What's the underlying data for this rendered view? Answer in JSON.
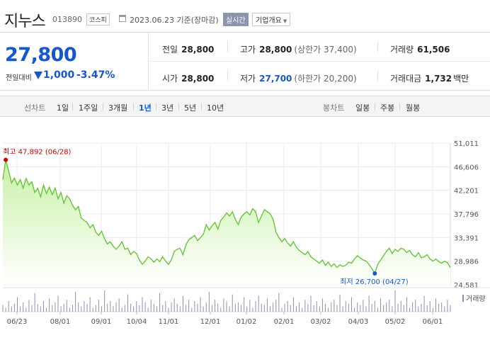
{
  "header": {
    "stock_name": "지누스",
    "stock_code": "013890",
    "market": "코스피",
    "date_text": "2023.06.23 기준(장마감)",
    "realtime_label": "실시간",
    "overview_label": "기업개요",
    "calendar_icon": "calendar-icon",
    "caret_icon": "chevron-down-icon"
  },
  "price": {
    "current": "27,800",
    "change_label": "전일대비",
    "direction_icon": "down-triangle-icon",
    "change": "1,000",
    "change_pct": "-3.47%",
    "down_color": "#1656d1"
  },
  "stats": {
    "prev_close_label": "전일",
    "prev_close": "28,800",
    "high_label": "고가",
    "high": "28,800",
    "upper_limit": "(상한가 37,400)",
    "volume_label": "거래량",
    "volume": "61,506",
    "open_label": "시가",
    "open": "28,800",
    "low_label": "저가",
    "low": "27,700",
    "lower_limit": "(하한가 20,200)",
    "trade_value_label": "거래대금",
    "trade_value": "1,732",
    "trade_value_unit": "백만"
  },
  "toolbar": {
    "line_chart_label": "선차트",
    "periods": [
      "1일",
      "1주일",
      "3개월",
      "1년",
      "3년",
      "5년",
      "10년"
    ],
    "active_period": "1년",
    "candle_label": "봉차트",
    "candles": [
      "일봉",
      "주봉",
      "월봉"
    ]
  },
  "chart_data": {
    "type": "area",
    "color_line": "#5cc52a",
    "color_fill_top": "#c9f0a7",
    "color_high": "#d20000",
    "color_low": "#1656d1",
    "y_ticks": [
      "51,011",
      "46,606",
      "42,201",
      "37,796",
      "33,391",
      "28,986",
      "24,581"
    ],
    "ylim": [
      24581,
      51011
    ],
    "x_tick_labels": [
      "06/23",
      "08/01",
      "09/01",
      "10/04",
      "11/01",
      "12/01",
      "01/02",
      "02/01",
      "03/02",
      "04/03",
      "05/02",
      "06/01"
    ],
    "high_annotation": "최고 47,892 (06/28)",
    "low_annotation": "최저 26,700 (04/27)",
    "volume_label": "거래량",
    "high_point": {
      "date": "06/28",
      "value": 47892
    },
    "low_point": {
      "date": "04/27",
      "value": 26700
    },
    "series": [
      {
        "values": [
          44200,
          47892,
          45800,
          43600,
          44500,
          43200,
          44200,
          42600,
          44400,
          43200,
          43800,
          41800,
          42600,
          41000,
          43200,
          41600,
          42800,
          41400,
          42600,
          40600,
          41800,
          39800,
          41200,
          40600,
          39400,
          38600,
          39200,
          37000,
          36600,
          36200,
          35200,
          35800,
          34400,
          33800,
          34600,
          33200,
          32200,
          32600,
          31800,
          31200,
          31800,
          32600,
          31200,
          31400,
          30200,
          30800,
          30400,
          29200,
          28400,
          29000,
          29800,
          29400,
          28800,
          29400,
          28900,
          29800,
          29000,
          28400,
          29200,
          30800,
          31200,
          31400,
          30200,
          32000,
          33000,
          33400,
          33800,
          32800,
          33400,
          34000,
          35800,
          34800,
          35600,
          36200,
          35000,
          36600,
          37200,
          38000,
          37400,
          38200,
          36800,
          35800,
          37200,
          37800,
          38200,
          37600,
          38800,
          38200,
          36200,
          37400,
          38600,
          38200,
          37800,
          36800,
          34400,
          33400,
          32600,
          33200,
          32400,
          31800,
          32600,
          31600,
          31000,
          30600,
          30200,
          30800,
          29800,
          29400,
          29000,
          28600,
          29200,
          28200,
          28800,
          28000,
          28500,
          27800,
          28300,
          28000,
          28200,
          28800,
          28600,
          29400,
          30000,
          29600,
          29200,
          29000,
          28400,
          27600,
          26700,
          28400,
          29200,
          30000,
          30800,
          31400,
          30400,
          31200,
          30800,
          31400,
          31200,
          30600,
          31000,
          30200,
          29800,
          30600,
          29600,
          29800,
          30200,
          29400,
          29000,
          29400,
          28900,
          28600,
          29000,
          28700,
          27800
        ]
      }
    ],
    "volume": [
      5,
      3,
      8,
      4,
      6,
      11,
      4,
      7,
      3,
      9,
      5,
      14,
      6,
      4,
      8,
      3,
      10,
      5,
      7,
      12,
      4,
      6,
      9,
      3,
      5,
      15,
      7,
      4,
      8,
      6,
      11,
      3,
      5,
      9,
      4,
      16,
      6,
      8,
      4,
      7,
      10,
      3,
      5,
      13,
      6,
      4,
      8,
      5,
      11,
      7,
      3,
      9,
      6,
      4,
      14,
      5,
      8,
      3,
      7,
      10,
      6,
      4,
      12,
      5,
      9,
      3,
      8,
      6,
      11,
      4,
      7,
      15,
      5,
      9,
      6,
      3,
      10,
      8,
      4,
      13,
      6,
      7,
      5,
      11,
      4,
      9,
      3,
      8,
      12,
      6,
      5,
      10,
      4,
      7,
      9,
      14,
      3,
      6,
      8,
      5,
      11,
      4,
      7,
      3,
      9,
      6,
      12,
      5,
      8,
      4,
      10,
      6,
      3,
      7,
      9,
      5,
      13,
      4,
      8,
      6,
      11,
      3,
      7,
      5,
      9,
      4,
      12,
      6,
      8,
      3,
      10,
      5,
      7,
      9,
      4,
      16,
      6,
      8,
      5,
      11,
      3,
      7,
      9,
      4,
      6,
      12,
      5,
      8,
      3,
      10,
      6,
      7,
      4,
      9,
      5
    ]
  }
}
